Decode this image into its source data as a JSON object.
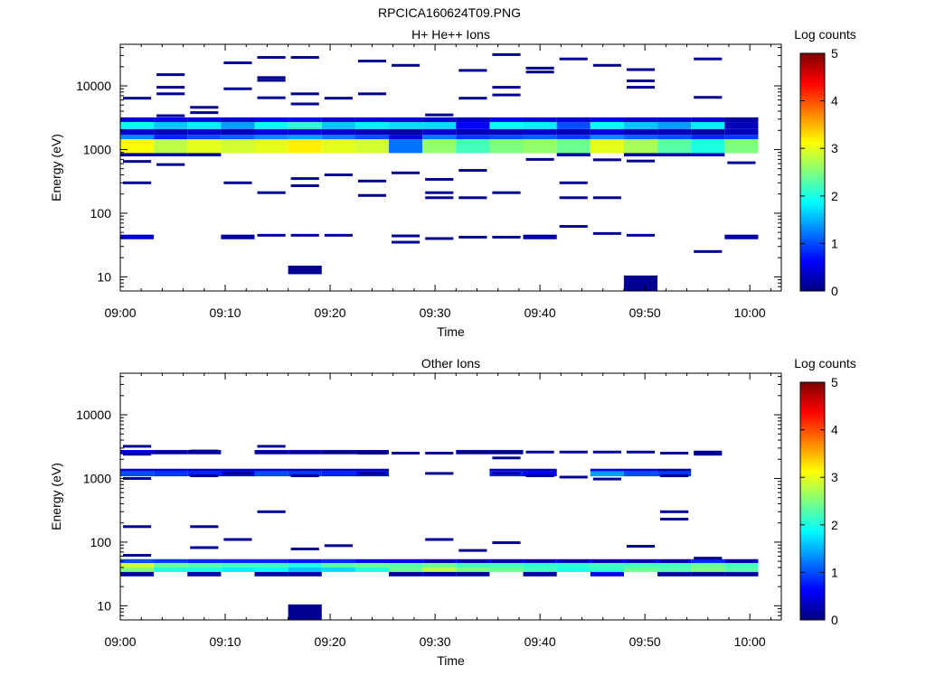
{
  "figure_title": "RPCICA160624T09.PNG",
  "colors": {
    "jet_stops": [
      "#00007f",
      "#0000ff",
      "#007fff",
      "#00ffff",
      "#7fff7f",
      "#ffff00",
      "#ff7f00",
      "#ff0000",
      "#7f0000"
    ]
  },
  "chart_data": [
    {
      "type": "heatmap",
      "title": "H+ He++ Ions",
      "xlabel": "Time",
      "ylabel": "Energy (eV)",
      "xlim": [
        "09:00",
        "10:03"
      ],
      "x_ticks": [
        "09:00",
        "09:10",
        "09:20",
        "09:30",
        "09:40",
        "09:50",
        "10:00"
      ],
      "y_scale": "log",
      "ylim": [
        6,
        45000
      ],
      "y_ticks": [
        10,
        100,
        1000,
        10000
      ],
      "y_tick_labels": [
        "10",
        "100",
        "1000",
        "10000"
      ],
      "colorbar": {
        "label": "Log counts",
        "range": [
          0,
          5
        ],
        "ticks": [
          "0",
          "1",
          "2",
          "3",
          "4",
          "5"
        ]
      },
      "time_bins_min": [
        0,
        3.2,
        6.4,
        9.6,
        12.8,
        16.0,
        19.2,
        22.4,
        25.6,
        28.8,
        32.0,
        35.2,
        38.4,
        41.6,
        44.8,
        48.0,
        51.2,
        54.4,
        57.6,
        60.8
      ],
      "bands": [
        {
          "e0": 880,
          "e1": 1450,
          "v": [
            3.1,
            2.8,
            3.0,
            2.9,
            3.0,
            3.2,
            3.0,
            2.9,
            1.2,
            2.6,
            2.2,
            2.5,
            2.6,
            2.4,
            3.0,
            2.7,
            2.3,
            2.0,
            2.5
          ]
        },
        {
          "e0": 1450,
          "e1": 1700,
          "v": [
            1.3,
            0.8,
            1.0,
            1.1,
            1.3,
            1.4,
            1.2,
            1.0,
            0.5,
            1.2,
            0.9,
            1.0,
            1.1,
            0.9,
            1.3,
            1.1,
            1.0,
            0.8,
            0.9
          ]
        },
        {
          "e0": 1700,
          "e1": 2100,
          "v": [
            0.4,
            0.3,
            0.4,
            0.3,
            0.5,
            0.5,
            0.4,
            0.3,
            0.2,
            0.4,
            0.3,
            0.3,
            0.4,
            0.3,
            0.5,
            0.3,
            0.3,
            0.2,
            0.3
          ]
        },
        {
          "e0": 2100,
          "e1": 2700,
          "v": [
            1.9,
            1.6,
            1.8,
            1.4,
            1.9,
            2.1,
            1.6,
            1.8,
            1.7,
            1.7,
            0.6,
            1.9,
            1.8,
            1.0,
            1.9,
            1.6,
            1.4,
            1.8,
            0.3
          ]
        },
        {
          "e0": 2700,
          "e1": 3200,
          "v": [
            0.5,
            0.6,
            0.5,
            0.4,
            0.6,
            0.7,
            0.5,
            0.5,
            0.5,
            0.4,
            0.3,
            0.6,
            0.5,
            0.4,
            0.6,
            0.4,
            0.4,
            0.4,
            0.2
          ]
        },
        {
          "e0": 780,
          "e1": 880,
          "v": [
            0.2,
            0.3,
            0.2,
            0.0,
            0.0,
            0.0,
            0.0,
            0.0,
            0.0,
            0.0,
            0.0,
            0.0,
            0.0,
            0.2,
            0.0,
            0.2,
            0.2,
            0.3,
            0.0
          ]
        },
        {
          "e0": 39,
          "e1": 46,
          "v": [
            0.4,
            0.0,
            0.0,
            0.2,
            0.0,
            0.0,
            0.0,
            0.0,
            0.0,
            0.0,
            0.0,
            0.0,
            0.2,
            0.0,
            0.0,
            0.0,
            0.0,
            0.0,
            0.2
          ]
        },
        {
          "e0": 11,
          "e1": 15,
          "v": [
            0,
            0,
            0,
            0,
            0,
            0.1,
            0,
            0,
            0,
            0,
            0,
            0,
            0,
            0,
            0,
            0,
            0,
            0,
            0
          ]
        },
        {
          "e0": 6,
          "e1": 10.5,
          "v": [
            0,
            0,
            0,
            0,
            0,
            0,
            0,
            0,
            0,
            0,
            0,
            0,
            0,
            0,
            0,
            0.1,
            0,
            0,
            0
          ]
        }
      ],
      "lines": [
        [
          0,
          6400
        ],
        [
          0,
          650
        ],
        [
          0,
          300
        ],
        [
          1,
          15000
        ],
        [
          1,
          9500
        ],
        [
          1,
          7500
        ],
        [
          1,
          3400
        ],
        [
          1,
          580
        ],
        [
          2,
          4600
        ],
        [
          2,
          3800
        ],
        [
          3,
          23000
        ],
        [
          3,
          9000
        ],
        [
          3,
          300
        ],
        [
          4,
          28000
        ],
        [
          4,
          13500
        ],
        [
          4,
          12200
        ],
        [
          4,
          6500
        ],
        [
          4,
          210
        ],
        [
          5,
          28000
        ],
        [
          5,
          7500
        ],
        [
          5,
          5200
        ],
        [
          5,
          350
        ],
        [
          5,
          270
        ],
        [
          6,
          6400
        ],
        [
          6,
          400
        ],
        [
          7,
          24500
        ],
        [
          7,
          7500
        ],
        [
          7,
          320
        ],
        [
          7,
          190
        ],
        [
          8,
          21000
        ],
        [
          8,
          430
        ],
        [
          8,
          35
        ],
        [
          9,
          3500
        ],
        [
          9,
          340
        ],
        [
          9,
          210
        ],
        [
          9,
          175
        ],
        [
          10,
          17500
        ],
        [
          10,
          6400
        ],
        [
          10,
          470
        ],
        [
          10,
          175
        ],
        [
          11,
          31000
        ],
        [
          11,
          9500
        ],
        [
          11,
          7200
        ],
        [
          11,
          210
        ],
        [
          12,
          19000
        ],
        [
          12,
          16500
        ],
        [
          12,
          700
        ],
        [
          13,
          26500
        ],
        [
          13,
          300
        ],
        [
          13,
          175
        ],
        [
          13,
          62
        ],
        [
          14,
          21000
        ],
        [
          14,
          690
        ],
        [
          14,
          175
        ],
        [
          15,
          18000
        ],
        [
          15,
          12000
        ],
        [
          15,
          9500
        ],
        [
          15,
          660
        ],
        [
          17,
          26500
        ],
        [
          17,
          6600
        ],
        [
          18,
          620
        ],
        [
          3,
          42
        ],
        [
          4,
          45
        ],
        [
          5,
          45
        ],
        [
          6,
          45
        ],
        [
          8,
          44
        ],
        [
          9,
          40
        ],
        [
          10,
          42
        ],
        [
          11,
          42
        ],
        [
          14,
          48
        ],
        [
          15,
          45
        ],
        [
          17,
          25
        ]
      ]
    },
    {
      "type": "heatmap",
      "title": "Other Ions",
      "xlabel": "Time",
      "ylabel": "Energy (eV)",
      "xlim": [
        "09:00",
        "10:03"
      ],
      "x_ticks": [
        "09:00",
        "09:10",
        "09:20",
        "09:30",
        "09:40",
        "09:50",
        "10:00"
      ],
      "y_scale": "log",
      "ylim": [
        6,
        45000
      ],
      "y_ticks": [
        10,
        100,
        1000,
        10000
      ],
      "y_tick_labels": [
        "10",
        "100",
        "1000",
        "10000"
      ],
      "colorbar": {
        "label": "Log counts",
        "range": [
          0,
          5
        ],
        "ticks": [
          "0",
          "1",
          "2",
          "3",
          "4",
          "5"
        ]
      },
      "time_bins_min": [
        0,
        3.2,
        6.4,
        9.6,
        12.8,
        16.0,
        19.2,
        22.4,
        25.6,
        28.8,
        32.0,
        35.2,
        38.4,
        41.6,
        44.8,
        48.0,
        51.2,
        54.4,
        57.6,
        60.8
      ],
      "bands": [
        {
          "e0": 34,
          "e1": 40,
          "v": [
            2.5,
            2.0,
            2.0,
            1.8,
            1.9,
            1.6,
            1.7,
            2.0,
            2.4,
            2.8,
            2.5,
            2.4,
            2.2,
            2.0,
            2.1,
            2.4,
            2.3,
            2.5,
            2.3
          ]
        },
        {
          "e0": 40,
          "e1": 47,
          "v": [
            2.9,
            2.4,
            2.3,
            2.2,
            2.2,
            2.0,
            2.3,
            2.4,
            2.3,
            2.4,
            2.2,
            2.2,
            2.1,
            2.1,
            2.2,
            2.2,
            2.2,
            2.4,
            2.2
          ]
        },
        {
          "e0": 47,
          "e1": 54,
          "v": [
            1.0,
            0.9,
            0.8,
            0.8,
            0.8,
            0.7,
            0.8,
            0.6,
            0.5,
            0.5,
            0.4,
            0.4,
            0.4,
            0.4,
            0.5,
            0.5,
            0.4,
            0.8,
            0.4
          ]
        },
        {
          "e0": 29,
          "e1": 34,
          "v": [
            0.2,
            0.0,
            0.2,
            0.0,
            0.2,
            0.2,
            0.0,
            0.0,
            0.2,
            0.2,
            0.2,
            0.0,
            0.2,
            0.0,
            0.5,
            0.0,
            0.2,
            0.2,
            0.2
          ]
        },
        {
          "e0": 1080,
          "e1": 1300,
          "v": [
            1.0,
            0.9,
            0.8,
            0.6,
            1.0,
            0.9,
            0.8,
            0.7,
            0,
            0,
            0,
            0.8,
            0.6,
            0,
            1.4,
            1.0,
            0.9,
            0,
            0
          ]
        },
        {
          "e0": 1300,
          "e1": 1420,
          "v": [
            0.4,
            0.4,
            0.4,
            0.3,
            0.4,
            0.3,
            0.3,
            0.3,
            0,
            0,
            0,
            0.3,
            0.3,
            0,
            0.5,
            0.4,
            0.2,
            0,
            0
          ]
        },
        {
          "e0": 2400,
          "e1": 2800,
          "v": [
            0.4,
            0.3,
            0.2,
            0,
            0.3,
            0.3,
            0.2,
            0.2,
            0,
            0,
            0.2,
            0.2,
            0,
            0,
            0,
            0,
            0,
            0,
            0
          ]
        },
        {
          "e0": 10.5,
          "e1": 6,
          "v": [
            0,
            0,
            0,
            0,
            0,
            0.1,
            0,
            0,
            0,
            0,
            0,
            0,
            0,
            0,
            0,
            0,
            0,
            0,
            0
          ]
        }
      ],
      "lines": [
        [
          0,
          3200
        ],
        [
          0,
          2400
        ],
        [
          0,
          1000
        ],
        [
          0,
          175
        ],
        [
          0,
          62
        ],
        [
          1,
          2600
        ],
        [
          2,
          2700
        ],
        [
          2,
          1100
        ],
        [
          2,
          175
        ],
        [
          2,
          82
        ],
        [
          3,
          1200
        ],
        [
          3,
          110
        ],
        [
          4,
          3200
        ],
        [
          4,
          2600
        ],
        [
          4,
          300
        ],
        [
          5,
          2600
        ],
        [
          5,
          1100
        ],
        [
          5,
          78
        ],
        [
          6,
          2600
        ],
        [
          6,
          88
        ],
        [
          7,
          2500
        ],
        [
          7,
          1200
        ],
        [
          8,
          2500
        ],
        [
          9,
          2500
        ],
        [
          9,
          1200
        ],
        [
          9,
          110
        ],
        [
          10,
          2600
        ],
        [
          10,
          74
        ],
        [
          11,
          2600
        ],
        [
          11,
          2100
        ],
        [
          11,
          1200
        ],
        [
          11,
          98
        ],
        [
          12,
          2600
        ],
        [
          12,
          1100
        ],
        [
          13,
          2600
        ],
        [
          13,
          1050
        ],
        [
          14,
          2600
        ],
        [
          14,
          980
        ],
        [
          15,
          2600
        ],
        [
          15,
          86
        ],
        [
          16,
          2500
        ],
        [
          16,
          1100
        ],
        [
          16,
          300
        ],
        [
          16,
          230
        ],
        [
          17,
          2600
        ],
        [
          17,
          2400
        ],
        [
          9,
          50
        ],
        [
          10,
          50
        ],
        [
          11,
          50
        ],
        [
          12,
          50
        ],
        [
          13,
          50
        ],
        [
          14,
          50
        ],
        [
          15,
          50
        ],
        [
          16,
          50
        ],
        [
          17,
          56
        ],
        [
          18,
          50
        ]
      ]
    }
  ]
}
